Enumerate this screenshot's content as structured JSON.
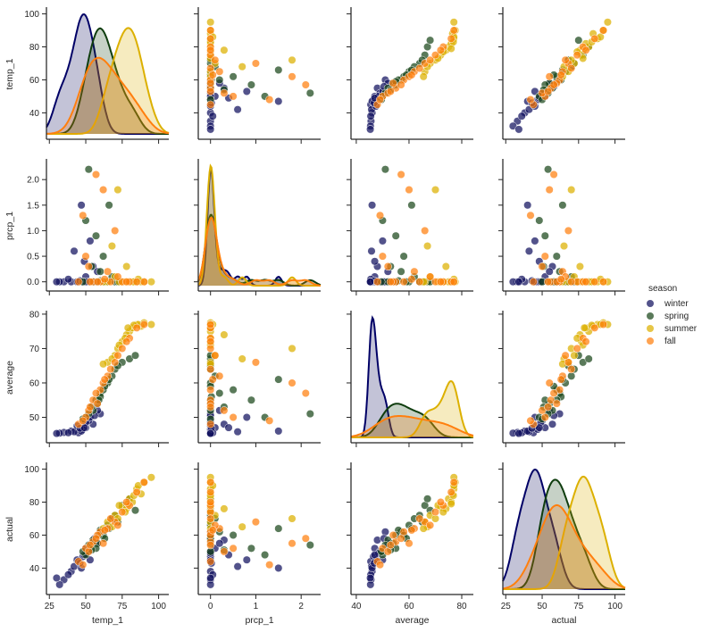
{
  "chart_data": {
    "type": "scatter",
    "kind": "pairplot",
    "variables": [
      "temp_1",
      "prcp_1",
      "average",
      "actual"
    ],
    "diagonal": "kde",
    "hue": "season",
    "grid": false,
    "legend": {
      "title": "season",
      "placement": "right",
      "entries": [
        "winter",
        "spring",
        "summer",
        "fall"
      ]
    },
    "colors": {
      "winter": "#10105e",
      "spring": "#1b461a",
      "summer": "#dcb000",
      "fall": "#ff7f0e"
    },
    "axes": {
      "temp_1": {
        "range": [
          23,
          107
        ],
        "ticks": [
          25,
          50,
          75,
          100
        ],
        "yrange": [
          24,
          103
        ],
        "yticks": [
          40,
          60,
          80,
          100
        ]
      },
      "prcp_1": {
        "range": [
          -0.27,
          2.43
        ],
        "ticks": [
          0,
          1,
          2
        ],
        "yrange": [
          -0.18,
          2.37
        ],
        "yticks": [
          "0.0",
          "0.5",
          "1.0",
          "1.5",
          "2.0"
        ]
      },
      "average": {
        "range": [
          38,
          84.4
        ],
        "ticks": [
          40,
          60,
          80
        ],
        "yrange": [
          42.6,
          80.5
        ],
        "yticks": [
          50,
          60,
          70,
          80
        ]
      },
      "actual": {
        "range": [
          23,
          107
        ],
        "ticks": [
          25,
          50,
          75,
          100
        ],
        "yrange": [
          24,
          103
        ],
        "yticks": [
          40,
          60,
          80,
          100
        ]
      }
    },
    "series": [
      {
        "name": "winter",
        "records": [
          [
            45,
            0,
            45.5,
            44
          ],
          [
            40,
            0,
            46,
            38
          ],
          [
            50,
            0.1,
            47,
            52
          ],
          [
            35,
            0,
            45.6,
            33
          ],
          [
            55,
            0.3,
            48,
            57
          ],
          [
            48,
            0,
            46.5,
            47
          ],
          [
            42,
            0.6,
            45.8,
            41
          ],
          [
            52,
            0,
            49,
            50
          ],
          [
            38,
            0.05,
            45.5,
            36
          ],
          [
            60,
            0,
            51,
            62
          ],
          [
            47,
            1.5,
            46,
            40
          ],
          [
            44,
            0,
            47.5,
            45
          ],
          [
            58,
            0.2,
            52,
            55
          ],
          [
            50,
            0,
            48.5,
            49
          ],
          [
            32,
            0,
            45.4,
            30
          ],
          [
            53,
            0.8,
            50,
            45
          ],
          [
            46,
            0.02,
            46.8,
            43
          ],
          [
            56,
            0,
            50.5,
            58
          ],
          [
            30,
            0,
            45.3,
            34
          ],
          [
            49,
            0.4,
            47,
            48
          ]
        ]
      },
      {
        "name": "spring",
        "records": [
          [
            55,
            0,
            52,
            57
          ],
          [
            60,
            0.2,
            57,
            62
          ],
          [
            65,
            0,
            60,
            66
          ],
          [
            70,
            0,
            64,
            72
          ],
          [
            50,
            1.2,
            50,
            48
          ],
          [
            62,
            0.5,
            58,
            60
          ],
          [
            75,
            0,
            66,
            78
          ],
          [
            58,
            0,
            54,
            55
          ],
          [
            68,
            0.1,
            62,
            70
          ],
          [
            80,
            0,
            67,
            82
          ],
          [
            52,
            2.2,
            51,
            54
          ],
          [
            63,
            0,
            59,
            58
          ],
          [
            57,
            0.9,
            55,
            52
          ],
          [
            72,
            0,
            65,
            68
          ],
          [
            48,
            0,
            49.5,
            50
          ],
          [
            66,
            1.5,
            61,
            64
          ],
          [
            84,
            0,
            68,
            75
          ],
          [
            60,
            0.02,
            56,
            63
          ],
          [
            54,
            0.3,
            53,
            51
          ],
          [
            59,
            0,
            55,
            60
          ]
        ]
      },
      {
        "name": "summer",
        "records": [
          [
            75,
            0,
            72,
            77
          ],
          [
            80,
            0,
            75,
            82
          ],
          [
            85,
            0,
            77,
            88
          ],
          [
            70,
            0.1,
            68,
            72
          ],
          [
            90,
            0,
            77.5,
            92
          ],
          [
            78,
            0.3,
            74,
            76
          ],
          [
            65,
            0,
            66,
            68
          ],
          [
            88,
            0,
            76.5,
            85
          ],
          [
            72,
            1.8,
            70,
            70
          ],
          [
            82,
            0,
            76,
            80
          ],
          [
            95,
            0,
            77,
            95
          ],
          [
            68,
            0.7,
            67,
            65
          ],
          [
            77,
            0,
            73,
            74
          ],
          [
            86,
            0.05,
            77,
            90
          ],
          [
            73,
            0,
            71,
            78
          ],
          [
            62,
            0,
            65.5,
            64
          ],
          [
            83,
            0,
            76.8,
            84
          ],
          [
            79,
            0,
            76,
            79
          ]
        ]
      },
      {
        "name": "fall",
        "records": [
          [
            55,
            0,
            55,
            56
          ],
          [
            65,
            0.2,
            62,
            64
          ],
          [
            75,
            0,
            70,
            74
          ],
          [
            60,
            0,
            58,
            62
          ],
          [
            50,
            0.5,
            50,
            52
          ],
          [
            70,
            1.0,
            66,
            68
          ],
          [
            80,
            0,
            73,
            78
          ],
          [
            45,
            0,
            48,
            44
          ],
          [
            62,
            1.8,
            60,
            55
          ],
          [
            58,
            0,
            54,
            60
          ],
          [
            85,
            0,
            76,
            86
          ],
          [
            52,
            0.3,
            52,
            50
          ],
          [
            67,
            0,
            64,
            70
          ],
          [
            72,
            0.1,
            68,
            66
          ],
          [
            48,
            1.3,
            49,
            42
          ],
          [
            78,
            0,
            72,
            80
          ],
          [
            57,
            2.1,
            57,
            58
          ],
          [
            63,
            0.05,
            61,
            63
          ],
          [
            90,
            0,
            77,
            92
          ],
          [
            53,
            0,
            53,
            54
          ]
        ]
      }
    ]
  }
}
